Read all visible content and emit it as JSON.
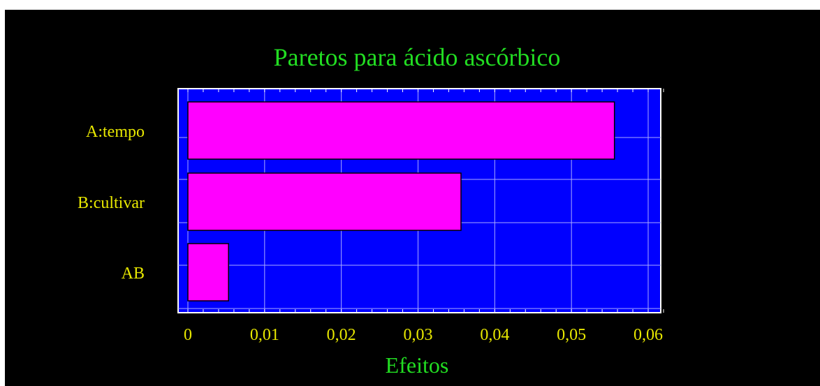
{
  "chart_data": {
    "type": "bar",
    "orientation": "horizontal",
    "title": "Paretos para ácido ascórbico",
    "xlabel": "Efeitos",
    "ylabel": "",
    "categories": [
      "A:tempo",
      "B:cultivar",
      "AB"
    ],
    "values": [
      0.0556,
      0.0356,
      0.0053
    ],
    "xlim": [
      0,
      0.062
    ],
    "xticks": [
      0,
      0.01,
      0.02,
      0.03,
      0.04,
      0.05,
      0.06
    ],
    "xtick_labels": [
      "0",
      "0,01",
      "0,02",
      "0,03",
      "0,04",
      "0,05",
      "0,06"
    ],
    "grid": true
  },
  "colors": {
    "background": "#000000",
    "plot_area": "#0000ff",
    "bar_fill": "#ff00ff",
    "bar_stroke": "#000000",
    "title": "#22dd22",
    "tick_labels": "#e8e800",
    "grid": "#aaaaff"
  }
}
